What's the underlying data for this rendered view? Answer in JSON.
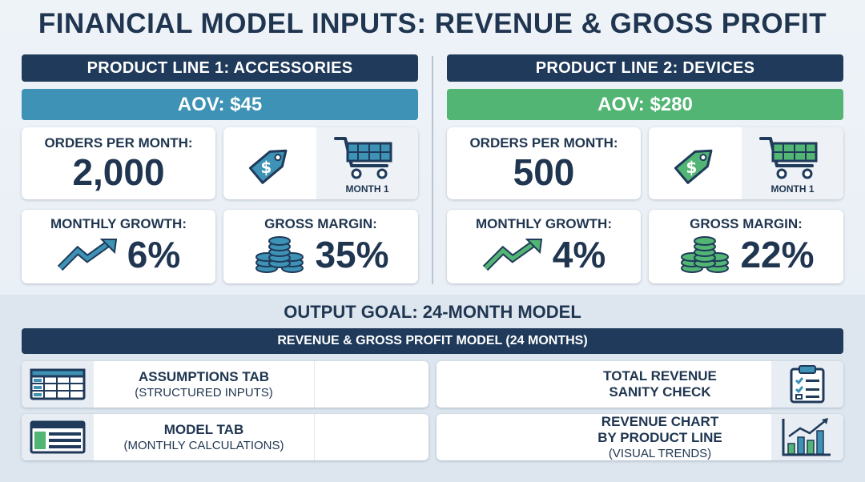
{
  "title": "FINANCIAL MODEL INPUTS: REVENUE & GROSS PROFIT",
  "product_lines": [
    {
      "header": "PRODUCT LINE 1: ACCESSORIES",
      "aov": "AOV: $45",
      "orders_label": "ORDERS PER MONTH:",
      "orders_value": "2,000",
      "month_label": "MONTH 1",
      "growth_label": "MONTHLY GROWTH:",
      "growth_value": "6%",
      "margin_label": "GROSS MARGIN:",
      "margin_value": "35%",
      "accent": "#3e92b5"
    },
    {
      "header": "PRODUCT LINE 2: DEVICES",
      "aov": "AOV: $280",
      "orders_label": "ORDERS PER MONTH:",
      "orders_value": "500",
      "month_label": "MONTH 1",
      "growth_label": "MONTHLY GROWTH:",
      "growth_value": "4%",
      "margin_label": "GROSS MARGIN:",
      "margin_value": "22%",
      "accent": "#52b574"
    }
  ],
  "output": {
    "goal": "OUTPUT GOAL: 24-MONTH MODEL",
    "model_bar": "REVENUE & GROSS PROFIT MODEL (24 MONTHS)",
    "items": [
      {
        "title": "ASSUMPTIONS TAB",
        "subtitle": "(STRUCTURED INPUTS)",
        "icon": "spreadsheet-icon"
      },
      {
        "title": "MODEL TAB",
        "subtitle": "(MONTHLY CALCULATIONS)",
        "icon": "table-layout-icon"
      },
      {
        "title": "TOTAL REVENUE",
        "title2": "SANITY CHECK",
        "icon": "clipboard-checklist-icon"
      },
      {
        "title": "REVENUE CHART",
        "title2": "BY PRODUCT LINE",
        "subtitle": "(VISUAL TRENDS)",
        "icon": "bar-chart-icon"
      }
    ]
  },
  "colors": {
    "navy": "#1f3a5a",
    "blue": "#3e92b5",
    "green": "#52b574"
  }
}
